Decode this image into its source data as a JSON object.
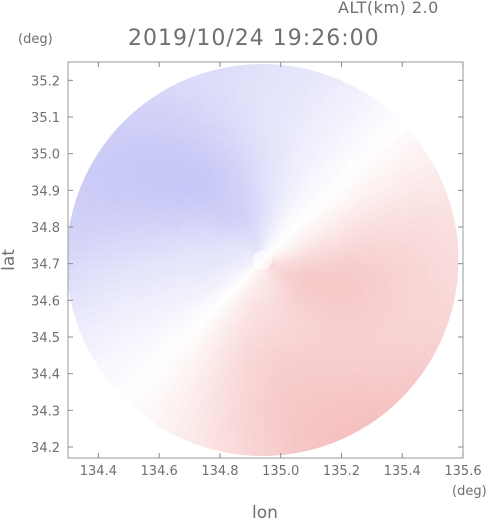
{
  "header": {
    "altitude": "ALT(km) 2.0",
    "timestamp": "2019/10/24 19:26:00"
  },
  "chart_data": {
    "type": "heatmap",
    "title": "2019/10/24 19:26:00",
    "subtitle": "ALT(km) 2.0",
    "xlabel": "lon",
    "ylabel": "lat",
    "x_unit": "(deg)",
    "y_unit": "(deg)",
    "xlim": [
      134.3,
      135.6
    ],
    "ylim": [
      34.17,
      35.25
    ],
    "x_ticks": [
      "134.4",
      "134.6",
      "134.8",
      "135.0",
      "135.2",
      "135.4",
      "135.6"
    ],
    "y_ticks": [
      "35.2",
      "35.1",
      "35.0",
      "34.9",
      "34.8",
      "34.7",
      "34.6",
      "34.5",
      "34.4",
      "34.3",
      "34.2"
    ],
    "radar_center": {
      "lon": 134.94,
      "lat": 34.71
    },
    "colors": {
      "positive": "#f4b8b8",
      "negative": "#c4c4f6",
      "neutral": "#ffffff",
      "axis": "#6f6f6f"
    }
  }
}
